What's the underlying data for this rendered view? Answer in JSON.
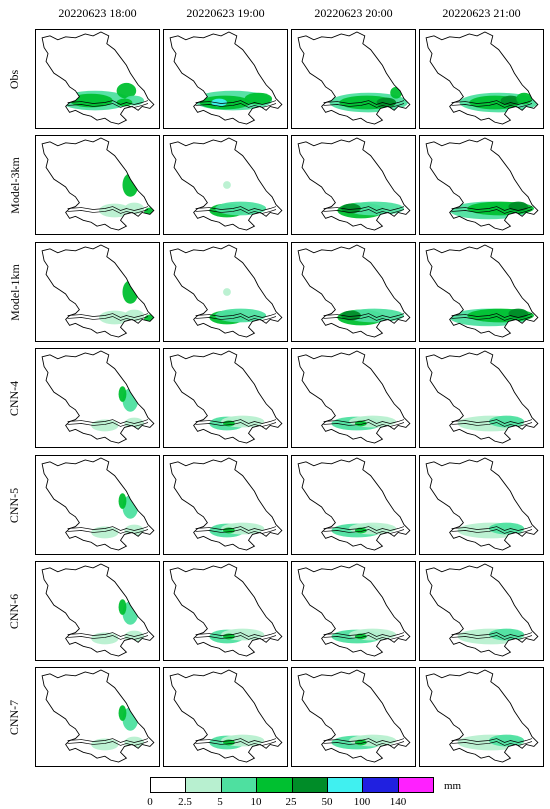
{
  "column_titles": [
    "20220623 18:00",
    "20220623 19:00",
    "20220623 20:00",
    "20220623 21:00"
  ],
  "row_labels": [
    "Obs",
    "Model-3km",
    "Model-1km",
    "CNN-4",
    "CNN-5",
    "CNN-6",
    "CNN-7"
  ],
  "legend": {
    "unit": "mm",
    "ticks": [
      "0",
      "2.5",
      "5",
      "10",
      "25",
      "50",
      "100",
      "140"
    ],
    "colors": [
      "#ffffff",
      "#b8f0d0",
      "#4ee0a0",
      "#00c030",
      "#008c28",
      "#40f0f0",
      "#2020e0",
      "#ff20ff"
    ]
  },
  "map_region": "Jiangsu province outline with Yangtze River",
  "panels": [
    [
      {
        "level": "obs-a"
      },
      {
        "level": "obs-b"
      },
      {
        "level": "obs-c"
      },
      {
        "level": "obs-d"
      }
    ],
    [
      {
        "level": "m3-a"
      },
      {
        "level": "m3-b"
      },
      {
        "level": "m3-c"
      },
      {
        "level": "m3-d"
      }
    ],
    [
      {
        "level": "m1-a"
      },
      {
        "level": "m1-b"
      },
      {
        "level": "m1-c"
      },
      {
        "level": "m1-d"
      }
    ],
    [
      {
        "level": "c4-a"
      },
      {
        "level": "c4-b"
      },
      {
        "level": "c4-c"
      },
      {
        "level": "c4-d"
      }
    ],
    [
      {
        "level": "c5-a"
      },
      {
        "level": "c5-b"
      },
      {
        "level": "c5-c"
      },
      {
        "level": "c5-d"
      }
    ],
    [
      {
        "level": "c6-a"
      },
      {
        "level": "c6-b"
      },
      {
        "level": "c6-c"
      },
      {
        "level": "c6-d"
      }
    ],
    [
      {
        "level": "c7-a"
      },
      {
        "level": "c7-b"
      },
      {
        "level": "c7-c"
      },
      {
        "level": "c7-d"
      }
    ]
  ]
}
